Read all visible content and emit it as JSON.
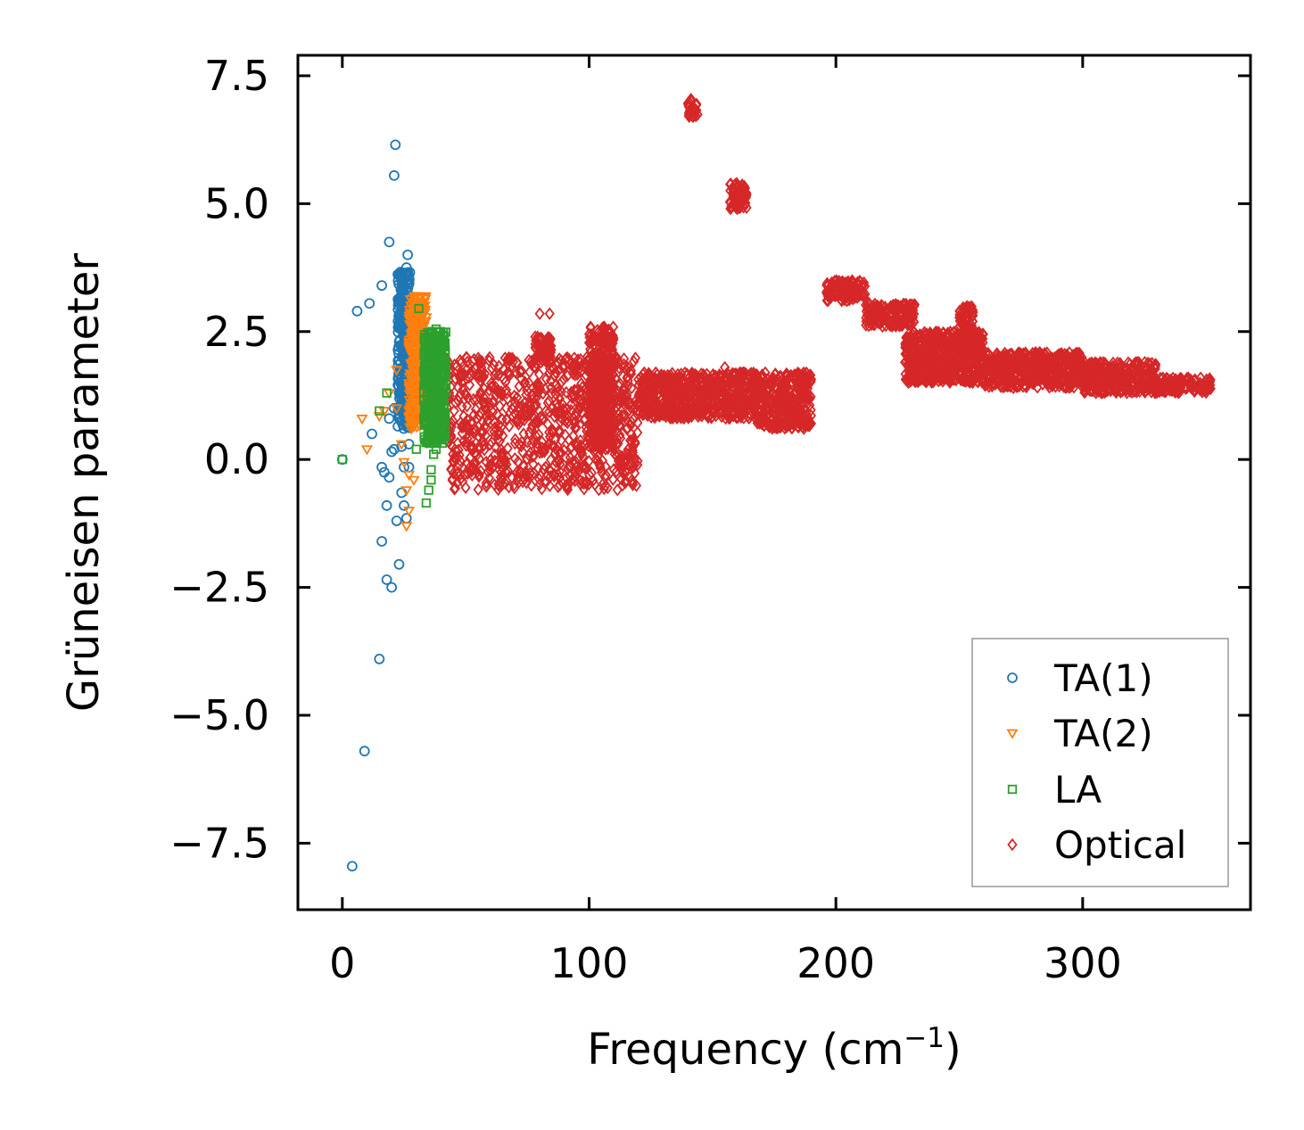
{
  "chart_data": {
    "type": "scatter",
    "title": "",
    "xlabel": "Frequency (cm",
    "xlabel_sup": "−1",
    "xlabel_suffix": ")",
    "ylabel": "Grüneisen parameter",
    "xlim": [
      -18,
      368
    ],
    "ylim": [
      -8.8,
      7.9
    ],
    "xticks": [
      0,
      100,
      200,
      300
    ],
    "xtick_labels": [
      "0",
      "100",
      "200",
      "300"
    ],
    "yticks": [
      -7.5,
      -5.0,
      -2.5,
      0.0,
      2.5,
      5.0,
      7.5
    ],
    "ytick_labels": [
      "−7.5",
      "−5.0",
      "−2.5",
      "0.0",
      "2.5",
      "5.0",
      "7.5"
    ],
    "legend_position": "lower-right",
    "series": [
      {
        "name": "TA(1)",
        "marker": "circle",
        "color": "#1f77b4",
        "points": [
          [
            0,
            0
          ],
          [
            4,
            -7.95
          ],
          [
            9,
            -5.7
          ],
          [
            6,
            2.9
          ],
          [
            11,
            3.05
          ],
          [
            16,
            3.4
          ],
          [
            19,
            4.25
          ],
          [
            21,
            5.55
          ],
          [
            21.5,
            6.15
          ],
          [
            15,
            -3.9
          ],
          [
            20,
            -2.5
          ],
          [
            18,
            -2.35
          ],
          [
            23,
            -2.05
          ],
          [
            16,
            -1.6
          ],
          [
            22,
            -1.2
          ],
          [
            26,
            -1.15
          ],
          [
            18,
            -0.9
          ],
          [
            25,
            -0.9
          ],
          [
            24,
            -0.65
          ],
          [
            19,
            -0.35
          ],
          [
            17,
            -0.25
          ],
          [
            16,
            -0.15
          ],
          [
            25,
            -0.15
          ],
          [
            27,
            -0.15
          ],
          [
            21,
            0.2
          ],
          [
            20,
            0.15
          ],
          [
            24,
            0.25
          ],
          [
            27,
            0.3
          ],
          [
            12,
            0.5
          ],
          [
            19,
            0.8
          ],
          [
            21,
            1.0
          ],
          [
            23,
            1.3
          ],
          [
            26,
            1.5
          ],
          [
            26,
            2.4
          ],
          [
            26,
            3.2
          ],
          [
            26,
            3.75
          ],
          [
            26.5,
            4.0
          ],
          [
            23,
            3.6
          ],
          [
            24,
            3.0
          ],
          [
            25,
            2.0
          ]
        ],
        "band": {
          "x": [
            22.5,
            27.5
          ],
          "y": [
            0.6,
            3.7
          ]
        }
      },
      {
        "name": "TA(2)",
        "marker": "triangle-down",
        "color": "#ff7f0e",
        "points": [
          [
            8,
            0.8
          ],
          [
            10,
            0.2
          ],
          [
            15,
            0.85
          ],
          [
            17,
            0.95
          ],
          [
            19,
            1.3
          ],
          [
            22,
            1.0
          ],
          [
            22,
            1.75
          ],
          [
            24,
            0.3
          ],
          [
            25,
            -0.05
          ],
          [
            27,
            -0.3
          ],
          [
            26,
            -0.6
          ],
          [
            27,
            -1.0
          ],
          [
            26,
            -1.3
          ],
          [
            29,
            -0.4
          ],
          [
            28,
            0.6
          ],
          [
            30,
            2.0
          ],
          [
            31,
            2.5
          ],
          [
            29,
            3.0
          ]
        ],
        "band": {
          "x": [
            27,
            34
          ],
          "y": [
            0.6,
            3.2
          ]
        }
      },
      {
        "name": "LA",
        "marker": "square",
        "color": "#2ca02c",
        "points": [
          [
            0,
            0
          ],
          [
            15,
            0.95
          ],
          [
            18,
            1.3
          ],
          [
            31,
            2.95
          ],
          [
            30,
            0.2
          ],
          [
            33,
            0.8
          ],
          [
            34,
            -0.85
          ],
          [
            35,
            -0.6
          ],
          [
            36,
            -0.4
          ],
          [
            36,
            -0.2
          ],
          [
            37,
            0.1
          ],
          [
            38,
            0.2
          ],
          [
            36,
            2.5
          ],
          [
            38,
            2.55
          ]
        ],
        "band": {
          "x": [
            33,
            42
          ],
          "y": [
            0.3,
            2.5
          ]
        }
      },
      {
        "name": "Optical",
        "marker": "diamond",
        "color": "#d62728",
        "points": [
          [
            80,
            2.85
          ],
          [
            84,
            2.85
          ],
          [
            67,
            1.95
          ],
          [
            47,
            -0.25
          ],
          [
            155,
            1.8
          ],
          [
            142,
            6.85
          ],
          [
            158,
            5.3
          ],
          [
            163,
            5.1
          ],
          [
            160,
            4.9
          ],
          [
            252,
            2.95
          ]
        ],
        "bands": [
          {
            "x": [
              42,
              120
            ],
            "y": [
              -0.6,
              2.0
            ]
          },
          {
            "x": [
              100,
              110
            ],
            "y": [
              0.2,
              2.6
            ]
          },
          {
            "x": [
              120,
              190
            ],
            "y": [
              0.8,
              1.7
            ]
          },
          {
            "x": [
              168,
              190
            ],
            "y": [
              0.6,
              0.8
            ]
          },
          {
            "x": [
              78,
              85
            ],
            "y": [
              1.9,
              2.4
            ]
          },
          {
            "x": [
              140,
              144
            ],
            "y": [
              6.7,
              7.05
            ]
          },
          {
            "x": [
              157,
              164
            ],
            "y": [
              4.9,
              5.4
            ]
          },
          {
            "x": [
              196,
              212
            ],
            "y": [
              3.1,
              3.5
            ]
          },
          {
            "x": [
              212,
              232
            ],
            "y": [
              2.6,
              3.05
            ]
          },
          {
            "x": [
              228,
              260
            ],
            "y": [
              1.5,
              2.5
            ]
          },
          {
            "x": [
              250,
              256
            ],
            "y": [
              2.2,
              3.0
            ]
          },
          {
            "x": [
              260,
              300
            ],
            "y": [
              1.4,
              2.1
            ]
          },
          {
            "x": [
              300,
              330
            ],
            "y": [
              1.3,
              1.9
            ]
          },
          {
            "x": [
              330,
              352
            ],
            "y": [
              1.3,
              1.6
            ]
          }
        ]
      }
    ]
  }
}
